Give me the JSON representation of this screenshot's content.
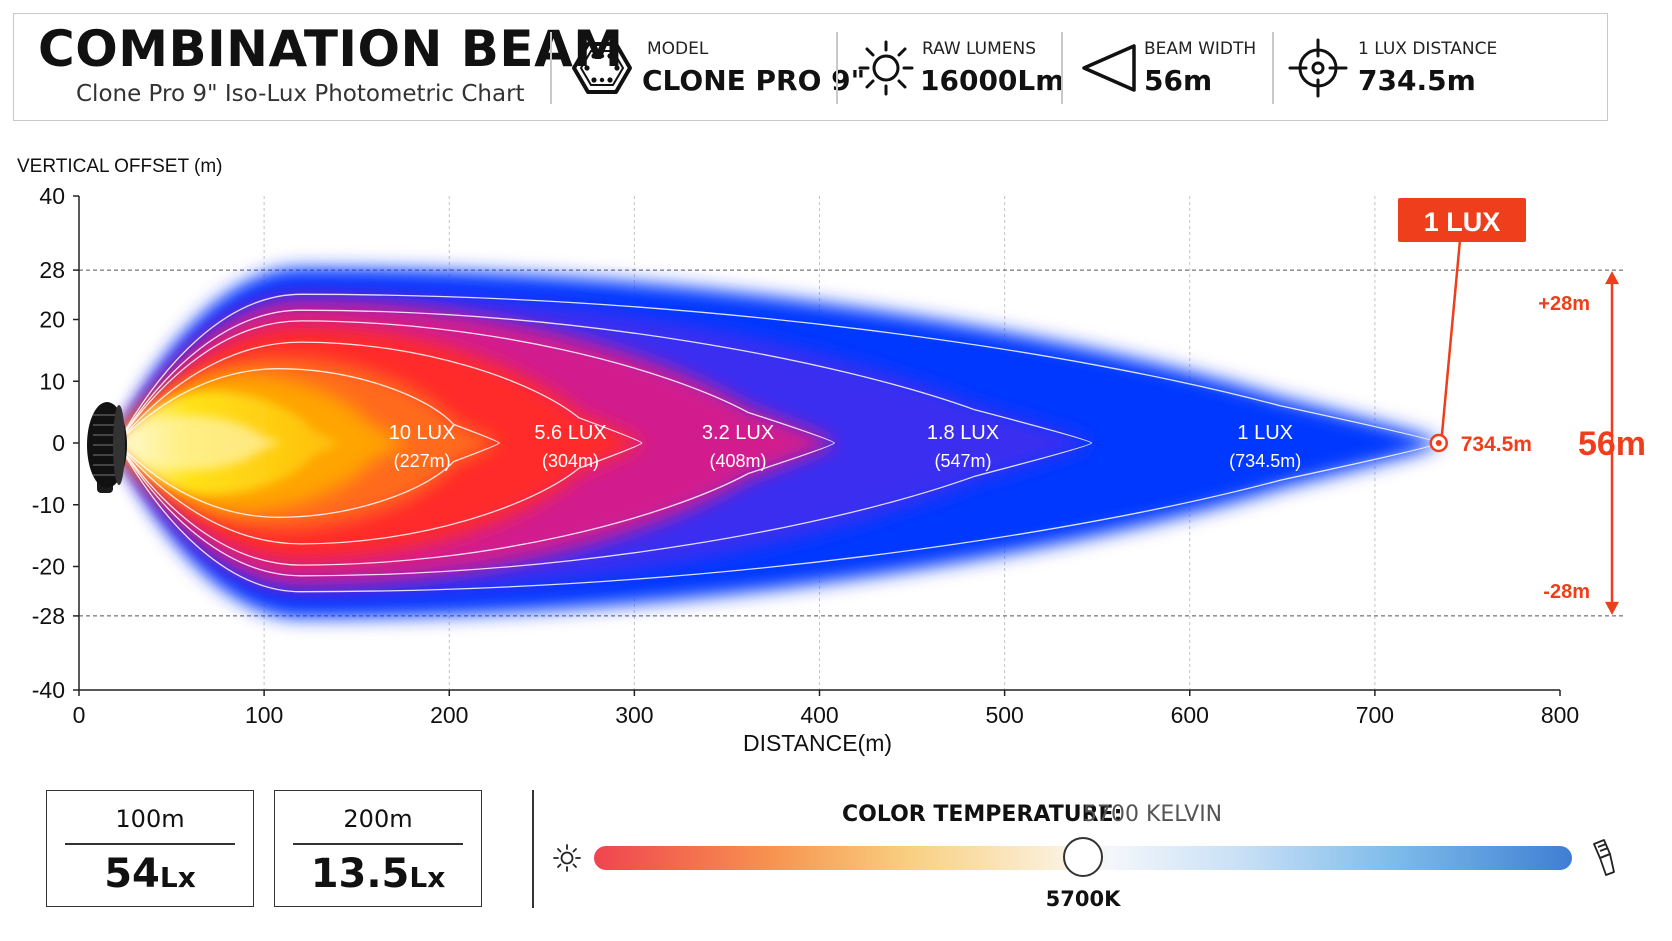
{
  "header": {
    "title": "COMBINATION BEAM",
    "subtitle": "Clone Pro 9\" Iso-Lux Photometric Chart",
    "specs": [
      {
        "icon": "hexagon-led-icon",
        "label": "MODEL",
        "value": "CLONE PRO 9\""
      },
      {
        "icon": "sun-icon",
        "label": "RAW LUMENS",
        "value": "16000Lm"
      },
      {
        "icon": "beam-width-icon",
        "label": "BEAM WIDTH",
        "value": "56m"
      },
      {
        "icon": "crosshair-icon",
        "label": "1 LUX DISTANCE",
        "value": "734.5m"
      }
    ]
  },
  "chart_data": {
    "type": "area",
    "ylabel": "VERTICAL OFFSET (m)",
    "xlabel": "DISTANCE(m)",
    "xlim": [
      0,
      800
    ],
    "ylim": [
      -40,
      40
    ],
    "xticks": [
      0,
      100,
      200,
      300,
      400,
      500,
      600,
      700,
      800
    ],
    "yticks": [
      40,
      28,
      20,
      10,
      0,
      -10,
      -20,
      -28,
      -40
    ],
    "grid": "vertical dashed",
    "contours": [
      {
        "lux": "10 LUX",
        "distance_label": "(227m)",
        "distance": 227,
        "half_width": 14
      },
      {
        "lux": "5.6 LUX",
        "distance_label": "(304m)",
        "distance": 304,
        "half_width": 19
      },
      {
        "lux": "3.2 LUX",
        "distance_label": "(408m)",
        "distance": 408,
        "half_width": 23
      },
      {
        "lux": "1.8 LUX",
        "distance_label": "(547m)",
        "distance": 547,
        "half_width": 25
      },
      {
        "lux": "1 LUX",
        "distance_label": "(734.5m)",
        "distance": 734.5,
        "half_width": 28
      }
    ],
    "callout": {
      "label": "1 LUX",
      "point_label": "734.5m",
      "x": 734.5,
      "y": 0
    },
    "beam_width": {
      "upper": "+28m",
      "lower": "-28m",
      "total": "56m",
      "upper_value": 28,
      "lower_value": -28
    },
    "colors": {
      "core": "#ffe500",
      "hot": "#ff2a2a",
      "mid": "#d21d8e",
      "outer": "#3b2df0",
      "edge": "#0039ff",
      "accent": "#ef3e1b"
    }
  },
  "readings": [
    {
      "distance": "100m",
      "value": "54",
      "unit": "Lx"
    },
    {
      "distance": "200m",
      "value": "13.5",
      "unit": "Lx"
    }
  ],
  "color_temp": {
    "label": "COLOR TEMPERATURE:",
    "value": "5700 KELVIN",
    "marker": "5700K",
    "position": 0.5
  }
}
